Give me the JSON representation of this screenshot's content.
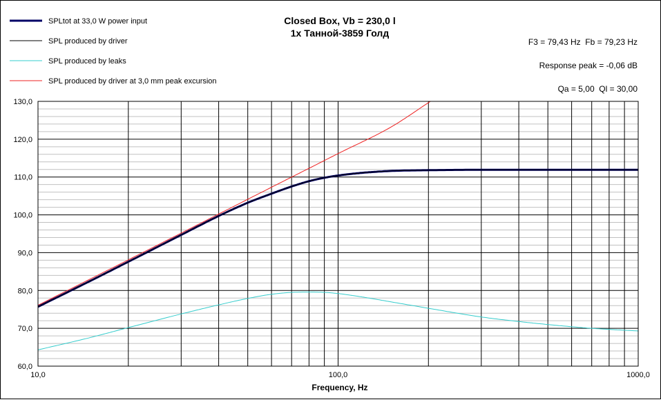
{
  "chart_data": {
    "type": "line",
    "title": "Closed Box, Vb = 230,0 l",
    "subtitle": "1x Танной-3859 Голд",
    "xlabel": "Frequency, Hz",
    "ylabel": "",
    "x_scale": "log",
    "xlim": [
      10,
      1000
    ],
    "ylim": [
      60,
      130
    ],
    "grid": true,
    "legend_position": "top-left",
    "x_ticks": [
      {
        "value": 10,
        "label": "10,0"
      },
      {
        "value": 100,
        "label": "100,0"
      },
      {
        "value": 1000,
        "label": "1000,0"
      }
    ],
    "y_ticks": [
      {
        "value": 60,
        "label": "60,0"
      },
      {
        "value": 70,
        "label": "70,0"
      },
      {
        "value": 80,
        "label": "80,0"
      },
      {
        "value": 90,
        "label": "90,0"
      },
      {
        "value": 100,
        "label": "100,0"
      },
      {
        "value": 110,
        "label": "110,0"
      },
      {
        "value": 120,
        "label": "120,0"
      },
      {
        "value": 130,
        "label": "130,0"
      }
    ],
    "annotations": [
      "F3 = 79,43 Hz  Fb = 79,23 Hz",
      "Response peak = -0,06 dB",
      "Qa = 5,00  Ql = 30,00"
    ],
    "series": [
      {
        "name": "SPLtot at 33,0 W power input",
        "color": "#000066",
        "x": [
          10,
          15,
          20,
          30,
          40,
          50,
          60,
          70,
          80,
          90,
          100,
          120,
          150,
          200,
          300,
          500,
          1000
        ],
        "y": [
          75.7,
          82.6,
          87.6,
          94.7,
          99.7,
          103.2,
          105.6,
          107.5,
          108.9,
          109.8,
          110.4,
          111.1,
          111.6,
          111.8,
          111.9,
          111.9,
          111.9
        ]
      },
      {
        "name": "SPL produced by driver",
        "color": "#000000",
        "x": [
          10,
          15,
          20,
          30,
          40,
          50,
          60,
          70,
          80,
          90,
          100,
          120,
          150,
          200,
          300,
          500,
          1000
        ],
        "y": [
          75.7,
          82.6,
          87.6,
          94.7,
          99.7,
          103.2,
          105.6,
          107.5,
          108.9,
          109.8,
          110.4,
          111.1,
          111.6,
          111.8,
          111.9,
          111.9,
          111.9
        ]
      },
      {
        "name": "SPL produced by leaks",
        "color": "#33cccc",
        "x": [
          10,
          15,
          20,
          30,
          40,
          50,
          60,
          70,
          80,
          90,
          100,
          120,
          150,
          200,
          300,
          400,
          500,
          700,
          1000
        ],
        "y": [
          64.3,
          67.6,
          70.2,
          73.8,
          76.2,
          77.9,
          79.0,
          79.5,
          79.6,
          79.5,
          79.2,
          78.3,
          77.0,
          75.3,
          73.0,
          71.8,
          71.0,
          70.0,
          69.3
        ]
      },
      {
        "name": "SPL produced by driver at 3,0 mm peak excursion",
        "color": "#ee2222",
        "x": [
          10,
          20,
          40,
          60,
          80,
          100,
          150,
          203
        ],
        "y": [
          76.1,
          88.1,
          100.2,
          107.3,
          112.3,
          116.2,
          123.2,
          130.0
        ]
      }
    ]
  }
}
